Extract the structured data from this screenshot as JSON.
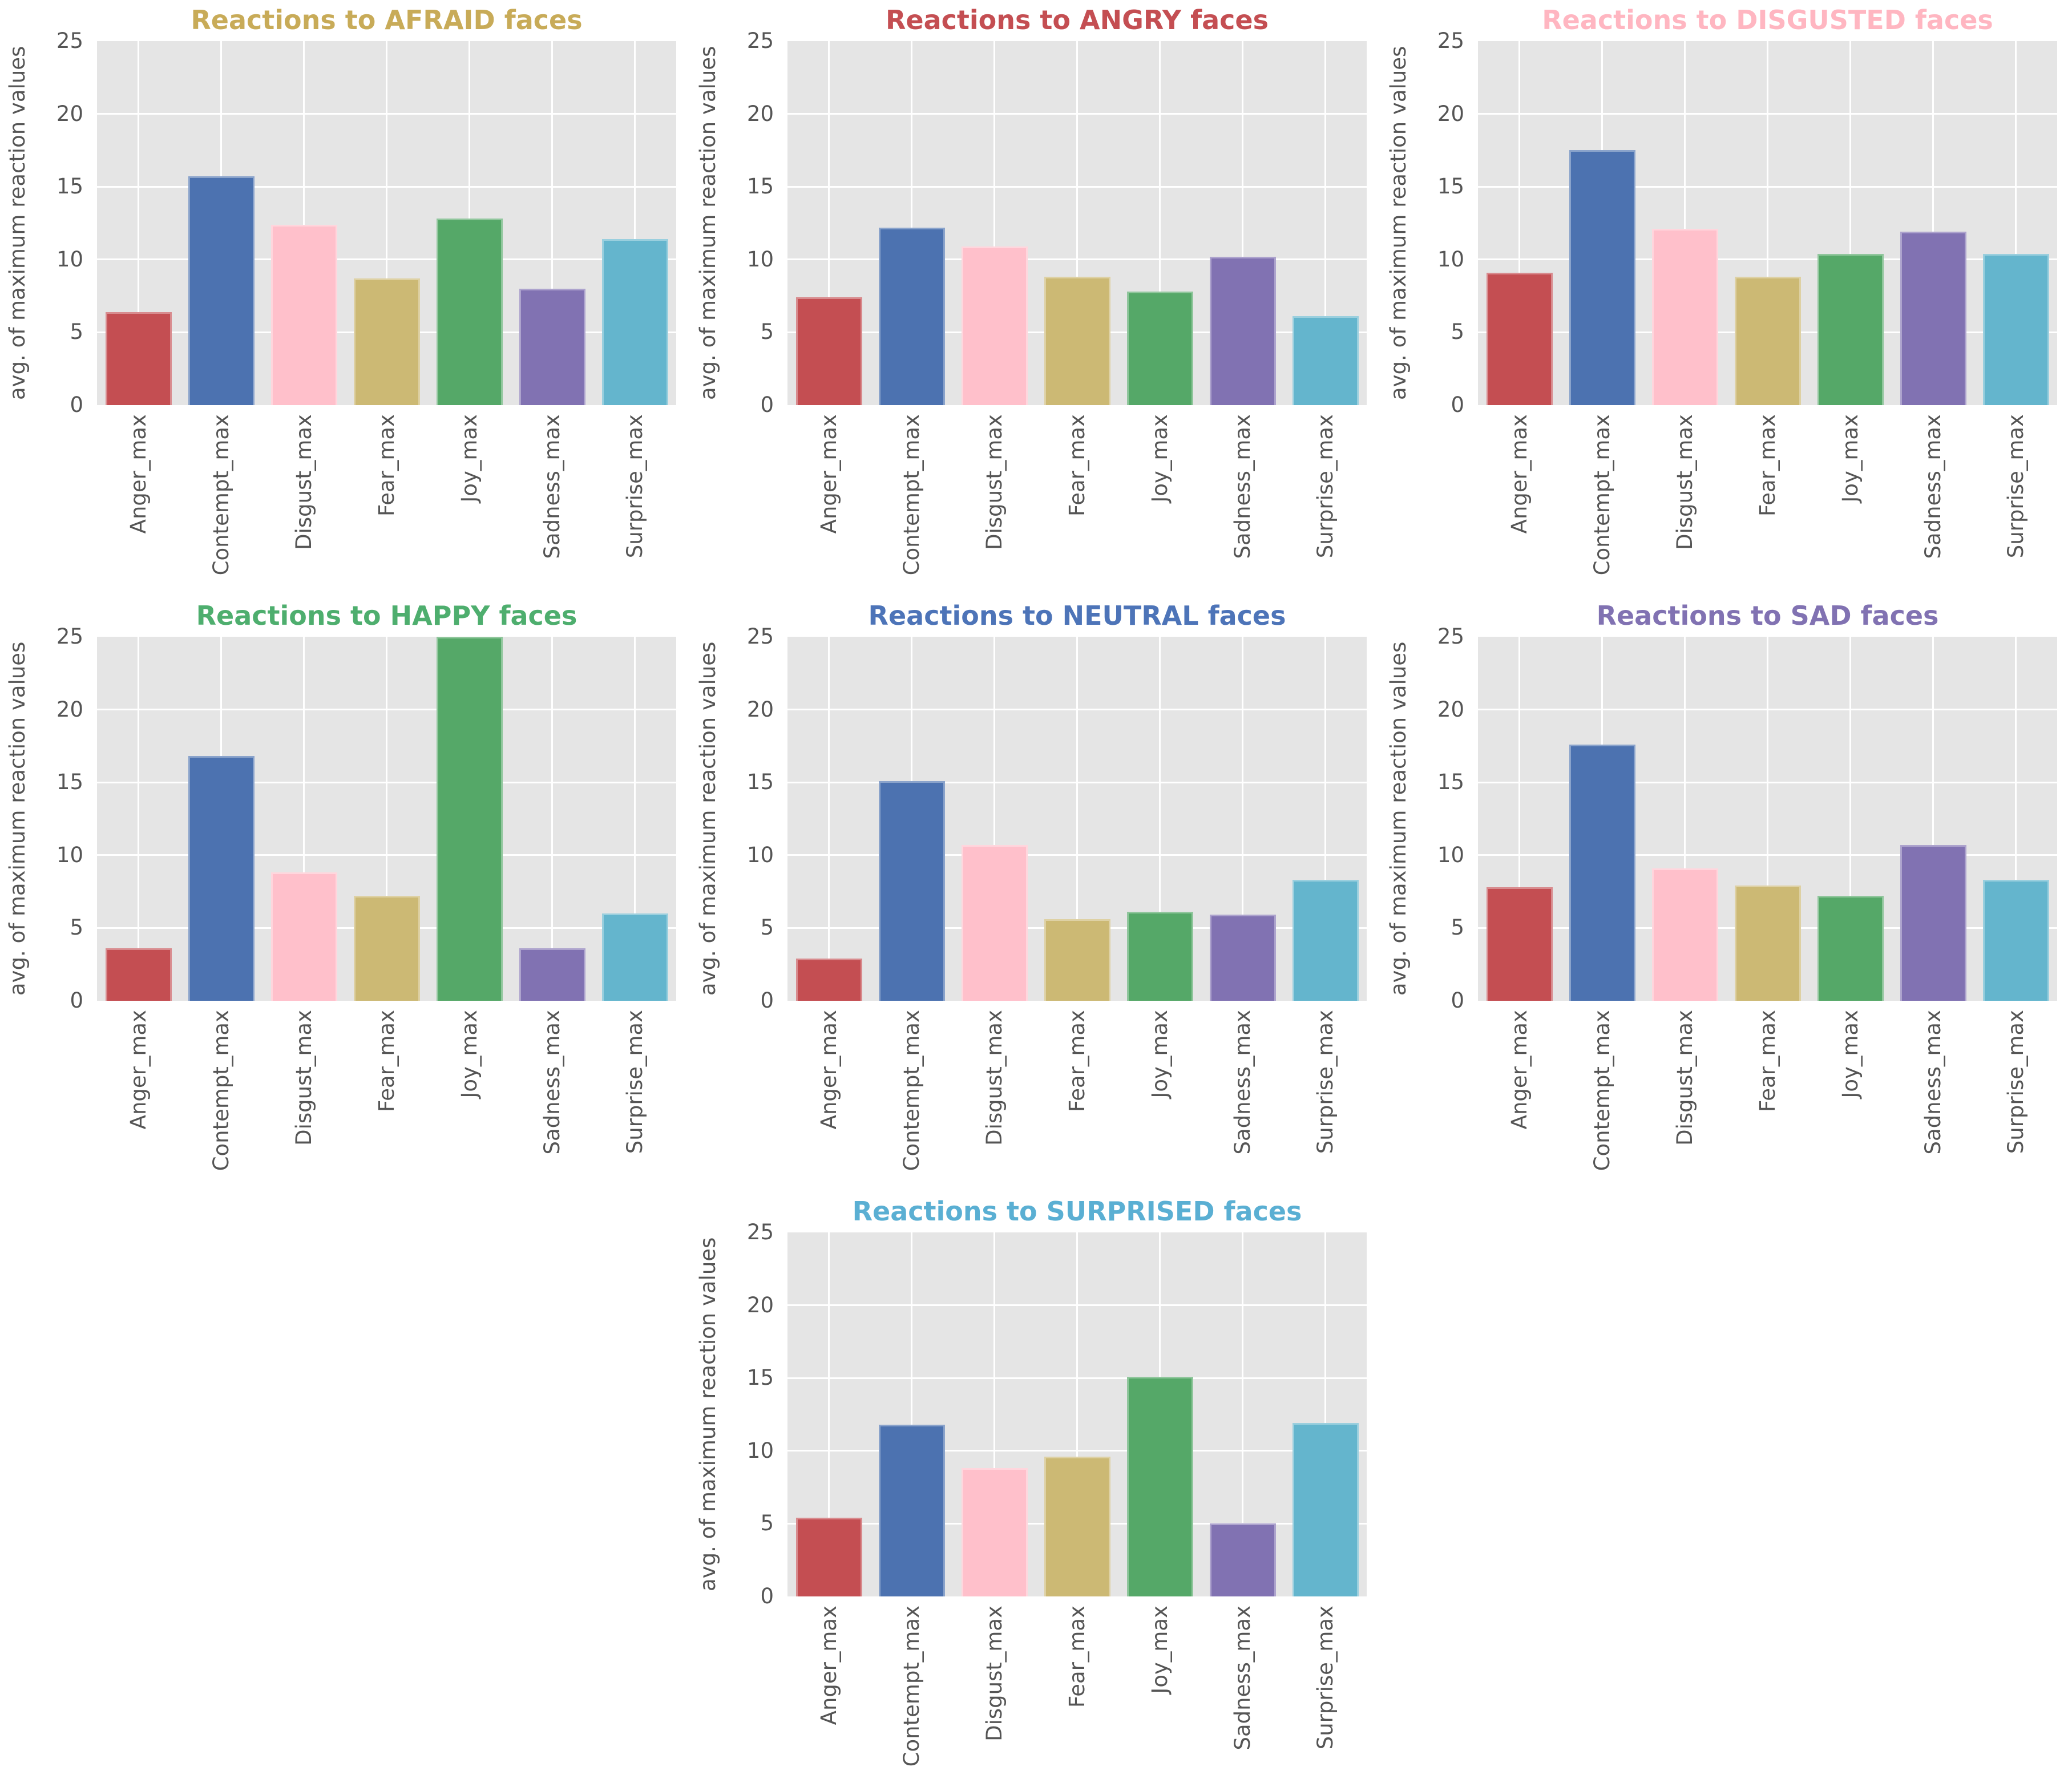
{
  "style": {
    "figure_background": "#ffffff",
    "plot_background": "#e5e5e5",
    "grid_color": "#ffffff",
    "tick_label_color": "#555555",
    "axis_label_color": "#555555",
    "bar_colors": [
      "#c44e52",
      "#4c72b0",
      "#ffc0cb",
      "#ccb974",
      "#55a868",
      "#8172b2",
      "#64b5cd"
    ]
  },
  "yticks": [
    0,
    5,
    10,
    15,
    20,
    25
  ],
  "chart_data": [
    {
      "type": "bar",
      "title": "Reactions to AFRAID faces",
      "title_color": "#c8ab58",
      "ylabel": "avg. of maximum reaction values",
      "ylim": [
        0,
        25
      ],
      "grid": true,
      "categories": [
        "Anger_max",
        "Contempt_max",
        "Disgust_max",
        "Fear_max",
        "Joy_max",
        "Sadness_max",
        "Surprise_max"
      ],
      "values": [
        6.4,
        15.7,
        12.4,
        8.7,
        12.8,
        8.0,
        11.4
      ],
      "grid_position": {
        "row": 0,
        "col": 0
      }
    },
    {
      "type": "bar",
      "title": "Reactions to ANGRY faces",
      "title_color": "#c44e52",
      "ylabel": "avg. of maximum reaction values",
      "ylim": [
        0,
        25
      ],
      "grid": true,
      "categories": [
        "Anger_max",
        "Contempt_max",
        "Disgust_max",
        "Fear_max",
        "Joy_max",
        "Sadness_max",
        "Surprise_max"
      ],
      "values": [
        7.4,
        12.2,
        10.9,
        8.8,
        7.8,
        10.2,
        6.1
      ],
      "grid_position": {
        "row": 0,
        "col": 1
      }
    },
    {
      "type": "bar",
      "title": "Reactions to DISGUSTED faces",
      "title_color": "#ffb6c1",
      "ylabel": "avg. of maximum reaction values",
      "ylim": [
        0,
        25
      ],
      "grid": true,
      "categories": [
        "Anger_max",
        "Contempt_max",
        "Disgust_max",
        "Fear_max",
        "Joy_max",
        "Sadness_max",
        "Surprise_max"
      ],
      "values": [
        9.1,
        17.5,
        12.1,
        8.8,
        10.4,
        11.9,
        10.4
      ],
      "grid_position": {
        "row": 0,
        "col": 2
      }
    },
    {
      "type": "bar",
      "title": "Reactions to HAPPY faces",
      "title_color": "#4eae6e",
      "ylabel": "avg. of maximum reaction values",
      "ylim": [
        0,
        25
      ],
      "grid": true,
      "categories": [
        "Anger_max",
        "Contempt_max",
        "Disgust_max",
        "Fear_max",
        "Joy_max",
        "Sadness_max",
        "Surprise_max"
      ],
      "values": [
        3.6,
        16.8,
        8.8,
        7.2,
        25,
        3.6,
        6.0
      ],
      "grid_position": {
        "row": 1,
        "col": 0
      }
    },
    {
      "type": "bar",
      "title": "Reactions to NEUTRAL faces",
      "title_color": "#4d74b8",
      "ylabel": "avg. of maximum reaction values",
      "ylim": [
        0,
        25
      ],
      "grid": true,
      "categories": [
        "Anger_max",
        "Contempt_max",
        "Disgust_max",
        "Fear_max",
        "Joy_max",
        "Sadness_max",
        "Surprise_max"
      ],
      "values": [
        2.9,
        15.1,
        10.7,
        5.6,
        6.1,
        5.9,
        8.3
      ],
      "grid_position": {
        "row": 1,
        "col": 1
      }
    },
    {
      "type": "bar",
      "title": "Reactions to SAD faces",
      "title_color": "#8172b2",
      "ylabel": "avg. of maximum reaction values",
      "ylim": [
        0,
        25
      ],
      "grid": true,
      "categories": [
        "Anger_max",
        "Contempt_max",
        "Disgust_max",
        "Fear_max",
        "Joy_max",
        "Sadness_max",
        "Surprise_max"
      ],
      "values": [
        7.8,
        17.6,
        9.1,
        7.9,
        7.2,
        10.7,
        8.3
      ],
      "grid_position": {
        "row": 1,
        "col": 2
      }
    },
    {
      "type": "bar",
      "title": "Reactions to SURPRISED faces",
      "title_color": "#5aafd3",
      "ylabel": "avg. of maximum reaction values",
      "ylim": [
        0,
        25
      ],
      "grid": true,
      "categories": [
        "Anger_max",
        "Contempt_max",
        "Disgust_max",
        "Fear_max",
        "Joy_max",
        "Sadness_max",
        "Surprise_max"
      ],
      "values": [
        5.4,
        11.8,
        8.8,
        9.6,
        15.1,
        5.0,
        11.9
      ],
      "grid_position": {
        "row": 2,
        "col": 1
      }
    }
  ]
}
